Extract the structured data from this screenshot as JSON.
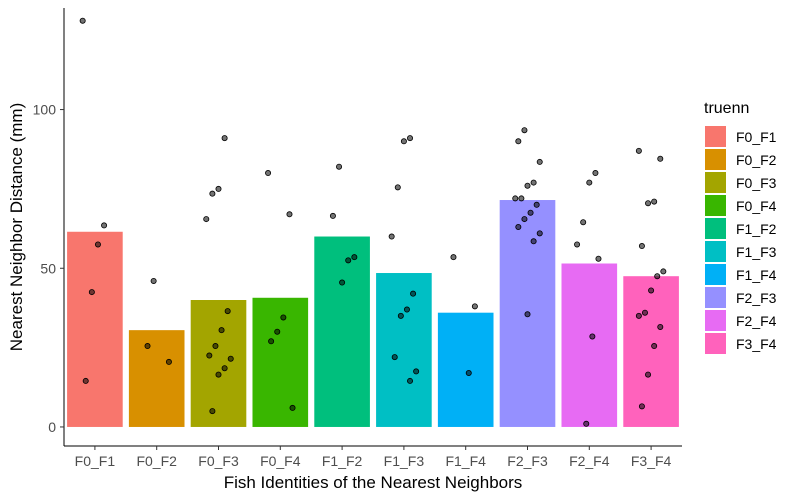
{
  "chart_data": {
    "type": "bar",
    "title": "",
    "xlabel": "Fish Identities of the Nearest Neighbors",
    "ylabel": "Nearest Neighbor Distance (mm)",
    "ylim": [
      -6,
      132
    ],
    "yticks": [
      0,
      50,
      100
    ],
    "grid": false,
    "legend": {
      "title": "truenn",
      "placement": "right"
    },
    "categories": [
      "F0_F1",
      "F0_F2",
      "F0_F3",
      "F0_F4",
      "F1_F2",
      "F1_F3",
      "F1_F4",
      "F2_F3",
      "F2_F4",
      "F3_F4"
    ],
    "values": [
      61.5,
      30.5,
      40,
      40.7,
      60,
      48.5,
      36,
      71.5,
      51.5,
      47.5
    ],
    "colors": [
      "#F8766D",
      "#D89000",
      "#A3A500",
      "#39B600",
      "#00BF7D",
      "#00BFC4",
      "#00B0F6",
      "#9590FF",
      "#E76BF3",
      "#FF62BC"
    ],
    "points": [
      [
        128,
        63.5,
        57.5,
        42.5,
        14.5
      ],
      [
        46,
        25.5,
        20.5
      ],
      [
        91,
        75,
        73.5,
        65.5,
        36.5,
        30.5,
        25.5,
        22.5,
        21.5,
        18.5,
        16.5,
        5
      ],
      [
        80,
        67,
        34.5,
        30,
        27,
        6
      ],
      [
        82,
        66.5,
        53.5,
        52.5,
        45.5
      ],
      [
        91,
        90,
        75.5,
        60,
        42,
        37,
        35,
        22,
        17.5,
        14.5
      ],
      [
        53.5,
        38,
        17
      ],
      [
        93.5,
        90,
        83.5,
        77,
        76,
        72,
        72,
        70,
        67.5,
        65.5,
        63,
        61,
        58.5,
        35.5
      ],
      [
        80,
        77,
        64.5,
        57.5,
        53,
        28.5,
        1
      ],
      [
        87,
        84.5,
        71,
        70.5,
        57,
        49,
        47.5,
        43,
        36,
        35,
        31.5,
        25.5,
        16.5,
        6.5
      ]
    ]
  }
}
